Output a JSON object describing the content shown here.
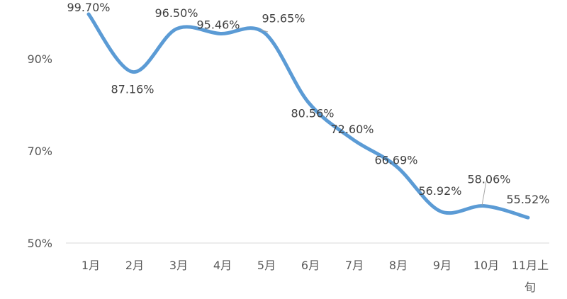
{
  "chart_data": {
    "type": "line",
    "title": "",
    "xlabel": "",
    "ylabel": "",
    "categories": [
      "1月",
      "2月",
      "3月",
      "4月",
      "5月",
      "6月",
      "7月",
      "8月",
      "9月",
      "10月",
      "11月上旬"
    ],
    "category_labels": [
      [
        "1月"
      ],
      [
        "2月"
      ],
      [
        "3月"
      ],
      [
        "4月"
      ],
      [
        "5月"
      ],
      [
        "6月"
      ],
      [
        "7月"
      ],
      [
        "8月"
      ],
      [
        "9月"
      ],
      [
        "10月"
      ],
      [
        "11月上",
        "旬"
      ]
    ],
    "series": [
      {
        "values": [
          99.7,
          87.16,
          96.5,
          95.46,
          95.65,
          80.56,
          72.6,
          66.69,
          56.92,
          58.06,
          55.52
        ],
        "data_labels": [
          "99.70%",
          "87.16%",
          "96.50%",
          "95.46%",
          "95.65%",
          "80.56%",
          "72.60%",
          "66.69%",
          "56.92%",
          "58.06%",
          "55.52%"
        ],
        "color": "#5b9bd5",
        "smooth": true
      }
    ],
    "ylim": [
      50,
      100
    ],
    "y_ticks": [
      50,
      70,
      90
    ],
    "y_tick_labels": [
      "50%",
      "70%",
      "90%"
    ],
    "grid": false,
    "legend": "none"
  }
}
